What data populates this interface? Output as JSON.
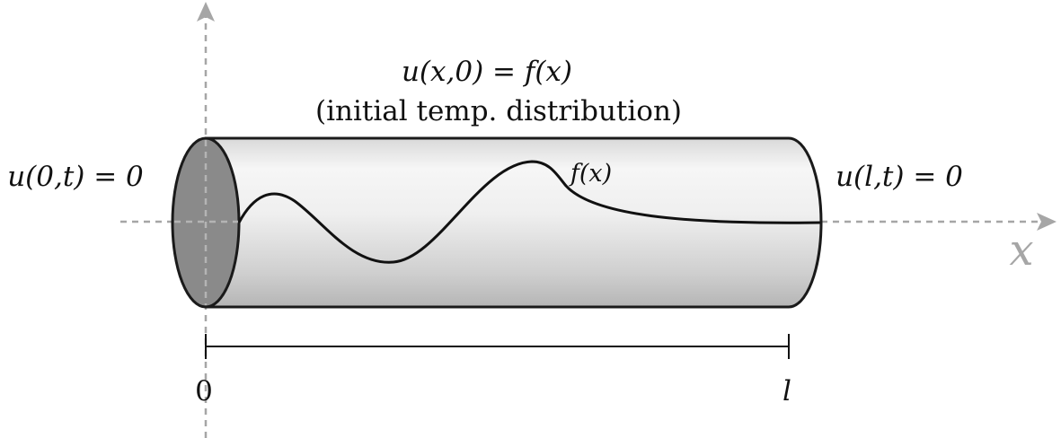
{
  "labels": {
    "initial_condition": "u(x,0) = f(x)",
    "initial_desc": "(initial temp. distribution)",
    "left_boundary": "u(0,t) = 0",
    "right_boundary": "u(l,t) = 0",
    "curve_label": "f(x)",
    "x_axis": "x",
    "origin": "0",
    "length": "l"
  },
  "colors": {
    "axis": "#a6a6a6",
    "rod_outline": "#1a1a1a",
    "rod_end_face": "#8a8a8a",
    "rod_body_light": "#f4f4f4",
    "rod_body_dark": "#bdbdbd",
    "curve": "#111111",
    "text": "#111111"
  }
}
